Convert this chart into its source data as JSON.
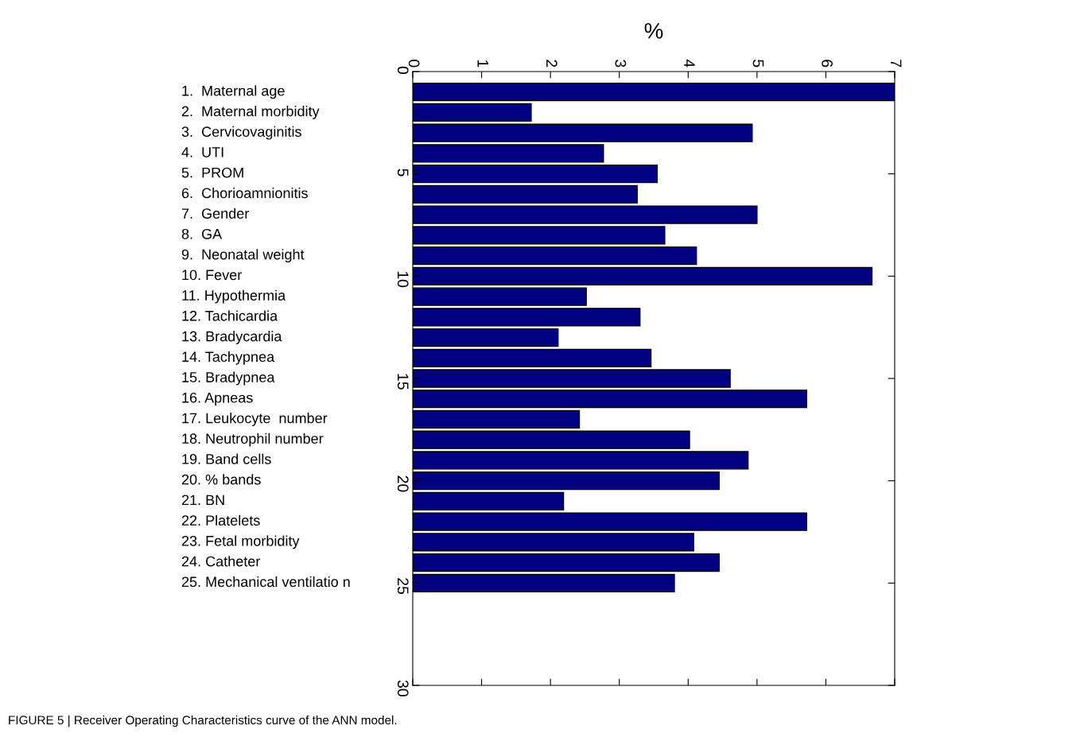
{
  "chart_data": {
    "type": "bar",
    "orientation": "horizontal",
    "title": "%",
    "x": [
      1,
      2,
      3,
      4,
      5,
      6,
      7,
      8,
      9,
      10,
      11,
      12,
      13,
      14,
      15,
      16,
      17,
      18,
      19,
      20,
      21,
      22,
      23,
      24,
      25
    ],
    "values": [
      7.0,
      1.72,
      4.93,
      2.77,
      3.55,
      3.26,
      5.0,
      3.66,
      4.12,
      6.67,
      2.52,
      3.3,
      2.11,
      3.46,
      4.61,
      5.72,
      2.42,
      4.02,
      4.87,
      4.45,
      2.19,
      5.72,
      4.08,
      4.45,
      3.8
    ],
    "color": "#000080",
    "xlim": [
      0,
      7
    ],
    "xticks": [
      0,
      1,
      2,
      3,
      4,
      5,
      6,
      7
    ],
    "ylim": [
      30,
      0
    ],
    "yticks": [
      0,
      5,
      10,
      15,
      20,
      25,
      30
    ],
    "grid": false,
    "legend": false,
    "annotations": [
      "1.  Maternal age",
      "2.  Maternal morbidity",
      "3.  Cervicovaginitis",
      "4.  UTI",
      "5.  PROM",
      "6.  Chorioamnionitis",
      "7.  Gender",
      "8.  GA",
      "9.  Neonatal weight",
      "10. Fever",
      "11. Hypothermia",
      "12. Tachicardia",
      "13. Bradycardia",
      "14. Tachypnea",
      "15. Bradypnea",
      "16. Apneas",
      "17. Leukocyte  number",
      "18. Neutrophil number",
      "19. Band cells",
      "20. % bands",
      "21. BN",
      "22. Platelets",
      "23. Fetal morbidity",
      "24. Catheter",
      "25. Mechanical ventilatio n",
      "FIGURE 5 | Receiver Operating Characteristics curve of the ANN model."
    ]
  }
}
